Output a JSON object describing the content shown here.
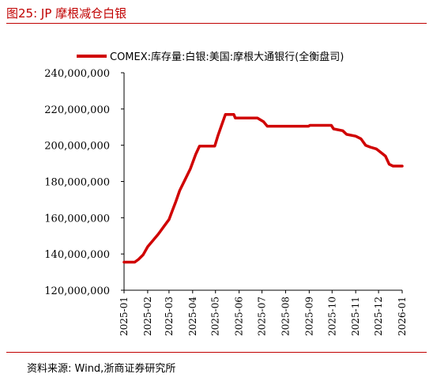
{
  "header": {
    "title": "图25:   JP 摩根减仓白银"
  },
  "footer": {
    "source": "资料来源:  Wind,浙商证券研究所"
  },
  "colors": {
    "accent": "#c00000",
    "line": "#d00000"
  },
  "chart_data": {
    "type": "line",
    "title": "",
    "xlabel": "",
    "ylabel": "",
    "ylim": [
      120000000,
      240000000
    ],
    "y_ticks": [
      120000000,
      140000000,
      160000000,
      180000000,
      200000000,
      220000000,
      240000000
    ],
    "y_tick_labels": [
      "120,000,000",
      "140,000,000",
      "160,000,000",
      "180,000,000",
      "200,000,000",
      "220,000,000",
      "240,000,000"
    ],
    "x_tick_labels": [
      "2025-01",
      "2025-02",
      "2025-03",
      "2025-04",
      "2025-05",
      "2025-06",
      "2025-07",
      "2025-08",
      "2025-09",
      "2025-10",
      "2025-11",
      "2025-12",
      "2026-01"
    ],
    "grid": false,
    "legend": "top",
    "series": [
      {
        "name": "COMEX:库存量:白银:美国:摩根大通银行(全衡盘司)",
        "color": "#d00000",
        "points": [
          [
            "2025-01-01",
            135500000
          ],
          [
            "2025-01-15",
            135500000
          ],
          [
            "2025-01-20",
            137000000
          ],
          [
            "2025-01-26",
            139500000
          ],
          [
            "2025-02-01",
            144000000
          ],
          [
            "2025-02-07",
            147000000
          ],
          [
            "2025-02-15",
            151000000
          ],
          [
            "2025-02-22",
            155000000
          ],
          [
            "2025-03-01",
            159000000
          ],
          [
            "2025-03-05",
            163500000
          ],
          [
            "2025-03-10",
            169000000
          ],
          [
            "2025-03-15",
            175000000
          ],
          [
            "2025-03-22",
            181000000
          ],
          [
            "2025-03-29",
            187000000
          ],
          [
            "2025-04-05",
            195000000
          ],
          [
            "2025-04-10",
            199500000
          ],
          [
            "2025-04-30",
            199500000
          ],
          [
            "2025-05-04",
            205000000
          ],
          [
            "2025-05-09",
            211000000
          ],
          [
            "2025-05-14",
            217000000
          ],
          [
            "2025-05-25",
            217000000
          ],
          [
            "2025-05-27",
            215000000
          ],
          [
            "2025-06-25",
            215000000
          ],
          [
            "2025-07-03",
            213000000
          ],
          [
            "2025-07-08",
            210500000
          ],
          [
            "2025-08-31",
            210500000
          ],
          [
            "2025-09-02",
            211000000
          ],
          [
            "2025-09-30",
            211000000
          ],
          [
            "2025-10-03",
            209000000
          ],
          [
            "2025-10-15",
            208000000
          ],
          [
            "2025-10-20",
            206000000
          ],
          [
            "2025-11-01",
            205000000
          ],
          [
            "2025-11-08",
            203500000
          ],
          [
            "2025-11-14",
            200000000
          ],
          [
            "2025-11-20",
            199000000
          ],
          [
            "2025-11-28",
            198000000
          ],
          [
            "2025-12-04",
            196000000
          ],
          [
            "2025-12-10",
            194000000
          ],
          [
            "2025-12-15",
            189500000
          ],
          [
            "2025-12-20",
            188500000
          ],
          [
            "2026-01-01",
            188500000
          ]
        ]
      }
    ]
  }
}
